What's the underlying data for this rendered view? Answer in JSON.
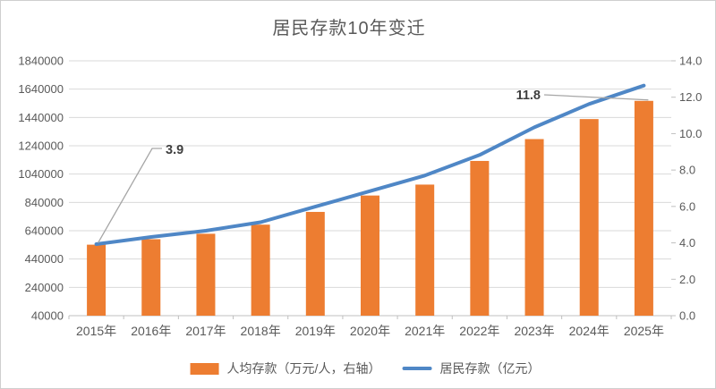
{
  "chart_data": {
    "type": "combo-bar-line",
    "title": "居民存款10年变迁",
    "categories": [
      "2015年",
      "2016年",
      "2017年",
      "2018年",
      "2019年",
      "2020年",
      "2021年",
      "2022年",
      "2023年",
      "2024年",
      "2025年"
    ],
    "series": [
      {
        "name": "人均存款（万元/人，右轴）",
        "type": "bar",
        "axis": "right",
        "color": "#ED7D31",
        "values": [
          3.9,
          4.2,
          4.5,
          5.0,
          5.7,
          6.6,
          7.2,
          8.5,
          9.7,
          10.8,
          11.8
        ]
      },
      {
        "name": "居民存款（亿元）",
        "type": "line",
        "axis": "left",
        "color": "#4F87C6",
        "values": [
          545000,
          596000,
          640000,
          700000,
          810000,
          920000,
          1030000,
          1175000,
          1370000,
          1535000,
          1665000
        ]
      }
    ],
    "left_axis": {
      "min": 40000,
      "max": 1840000,
      "step": 200000,
      "tick_labels": [
        "1840000",
        "1640000",
        "1440000",
        "1240000",
        "1040000",
        "840000",
        "640000",
        "440000",
        "240000",
        "40000"
      ]
    },
    "right_axis": {
      "min": 0.0,
      "max": 14.0,
      "step": 2.0,
      "tick_labels": [
        "14.0",
        "12.0",
        "10.0",
        "8.0",
        "6.0",
        "4.0",
        "2.0",
        "0.0"
      ]
    },
    "annotations": [
      {
        "text": "3.9",
        "category": "2015年",
        "series": "人均存款（万元/人，右轴）"
      },
      {
        "text": "11.8",
        "category": "2025年",
        "series": "人均存款（万元/人，右轴）"
      }
    ],
    "legend_position": "bottom",
    "grid": true,
    "colors": {
      "gridline": "#D9D9D9",
      "axis_line": "#BFBFBF",
      "tick_text": "#595959",
      "annotation_text": "#3F3F3F",
      "annotation_leader": "#A6A6A6",
      "background": "#FFFFFF"
    }
  }
}
